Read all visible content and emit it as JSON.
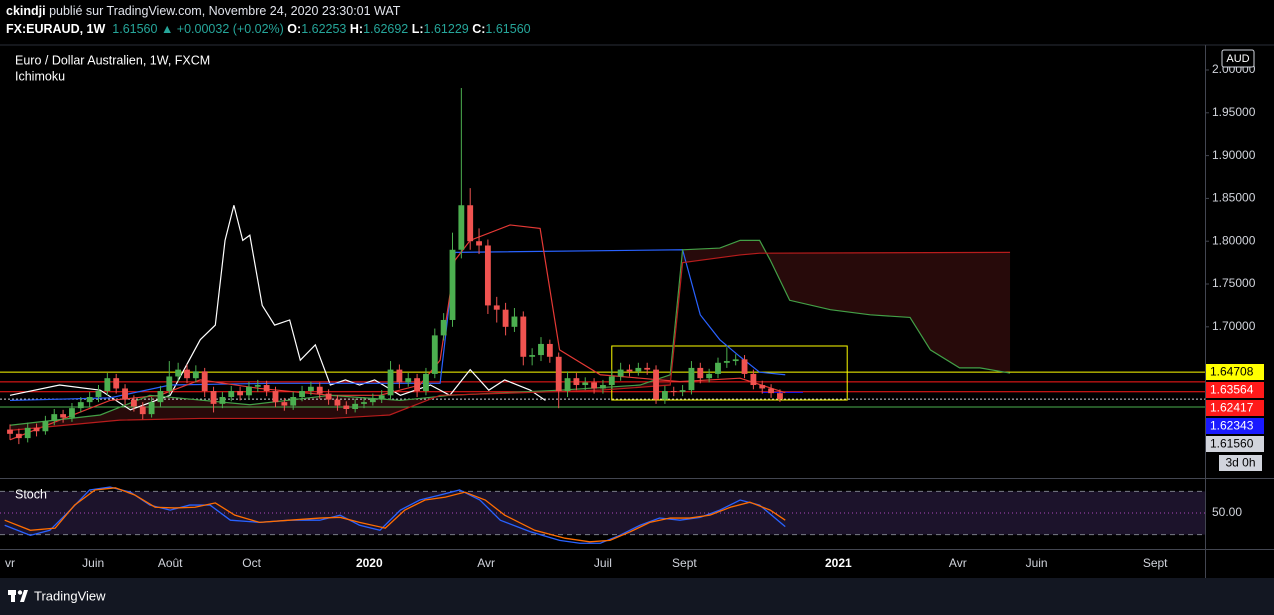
{
  "header": {
    "author": "ckindji",
    "published": "publié sur TradingView.com, Novembre 24, 2020 23:30:01 WAT",
    "symbol": "FX:EURAUD, 1W",
    "last": "1.61560",
    "change": "▲ +0.00032 (+0.02%)",
    "ohlc": [
      {
        "label": "O:",
        "value": "1.62253"
      },
      {
        "label": "H:",
        "value": "1.62692"
      },
      {
        "label": "L:",
        "value": "1.61229"
      },
      {
        "label": "C:",
        "value": "1.61560"
      }
    ]
  },
  "footer": {
    "brand": "TradingView"
  },
  "chart_data": [
    {
      "type": "candlestick",
      "title": "Euro / Dollar Australien, 1W, FXCM",
      "indicator": "Ichimoku",
      "currency": "AUD",
      "countdown": "3d 0h",
      "up_color": "#4caf50",
      "down_color": "#f05350",
      "grid": false,
      "xlim": [
        -1.13,
        135.03
      ],
      "ylim": [
        1.5234,
        2.0292
      ],
      "yticks": [
        {
          "value": 2.0,
          "label": "2.00000"
        },
        {
          "value": 1.95,
          "label": "1.95000"
        },
        {
          "value": 1.9,
          "label": "1.90000"
        },
        {
          "value": 1.85,
          "label": "1.85000"
        },
        {
          "value": 1.8,
          "label": "1.80000"
        },
        {
          "value": 1.75,
          "label": "1.75000"
        },
        {
          "value": 1.7,
          "label": "1.70000"
        }
      ],
      "candles": [
        [
          1.58,
          1.586,
          1.568,
          1.575
        ],
        [
          1.575,
          1.581,
          1.563,
          1.57
        ],
        [
          1.57,
          1.588,
          1.565,
          1.582
        ],
        [
          1.582,
          1.587,
          1.572,
          1.578
        ],
        [
          1.578,
          1.596,
          1.574,
          1.59
        ],
        [
          1.59,
          1.604,
          1.585,
          1.598
        ],
        [
          1.598,
          1.603,
          1.588,
          1.594
        ],
        [
          1.594,
          1.611,
          1.589,
          1.605
        ],
        [
          1.605,
          1.618,
          1.6,
          1.612
        ],
        [
          1.612,
          1.624,
          1.606,
          1.618
        ],
        [
          1.618,
          1.632,
          1.612,
          1.625
        ],
        [
          1.625,
          1.646,
          1.62,
          1.64
        ],
        [
          1.64,
          1.645,
          1.622,
          1.628
        ],
        [
          1.628,
          1.633,
          1.609,
          1.615
        ],
        [
          1.615,
          1.62,
          1.601,
          1.607
        ],
        [
          1.607,
          1.612,
          1.592,
          1.598
        ],
        [
          1.598,
          1.618,
          1.594,
          1.612
        ],
        [
          1.612,
          1.631,
          1.607,
          1.625
        ],
        [
          1.625,
          1.66,
          1.62,
          1.642
        ],
        [
          1.642,
          1.658,
          1.636,
          1.65
        ],
        [
          1.65,
          1.656,
          1.634,
          1.64
        ],
        [
          1.64,
          1.655,
          1.635,
          1.648
        ],
        [
          1.648,
          1.652,
          1.618,
          1.625
        ],
        [
          1.625,
          1.63,
          1.6,
          1.61
        ],
        [
          1.61,
          1.624,
          1.605,
          1.618
        ],
        [
          1.618,
          1.631,
          1.613,
          1.625
        ],
        [
          1.625,
          1.63,
          1.614,
          1.62
        ],
        [
          1.62,
          1.636,
          1.615,
          1.63
        ],
        [
          1.63,
          1.638,
          1.624,
          1.632
        ],
        [
          1.632,
          1.637,
          1.619,
          1.625
        ],
        [
          1.625,
          1.63,
          1.606,
          1.612
        ],
        [
          1.612,
          1.617,
          1.602,
          1.608
        ],
        [
          1.608,
          1.624,
          1.603,
          1.618
        ],
        [
          1.618,
          1.631,
          1.613,
          1.625
        ],
        [
          1.625,
          1.636,
          1.62,
          1.63
        ],
        [
          1.63,
          1.635,
          1.616,
          1.622
        ],
        [
          1.622,
          1.627,
          1.609,
          1.615
        ],
        [
          1.615,
          1.62,
          1.602,
          1.608
        ],
        [
          1.608,
          1.613,
          1.598,
          1.604
        ],
        [
          1.604,
          1.616,
          1.6,
          1.61
        ],
        [
          1.61,
          1.618,
          1.605,
          1.612
        ],
        [
          1.612,
          1.622,
          1.608,
          1.616
        ],
        [
          1.616,
          1.626,
          1.611,
          1.62
        ],
        [
          1.62,
          1.66,
          1.615,
          1.65
        ],
        [
          1.65,
          1.656,
          1.628,
          1.635
        ],
        [
          1.635,
          1.646,
          1.63,
          1.64
        ],
        [
          1.64,
          1.645,
          1.618,
          1.625
        ],
        [
          1.625,
          1.652,
          1.62,
          1.645
        ],
        [
          1.645,
          1.698,
          1.64,
          1.69
        ],
        [
          1.69,
          1.716,
          1.684,
          1.708
        ],
        [
          1.708,
          1.81,
          1.7,
          1.79
        ],
        [
          1.79,
          1.979,
          1.78,
          1.842
        ],
        [
          1.842,
          1.862,
          1.79,
          1.8
        ],
        [
          1.8,
          1.815,
          1.785,
          1.795
        ],
        [
          1.795,
          1.802,
          1.715,
          1.725
        ],
        [
          1.725,
          1.735,
          1.705,
          1.72
        ],
        [
          1.72,
          1.728,
          1.69,
          1.7
        ],
        [
          1.7,
          1.722,
          1.694,
          1.712
        ],
        [
          1.712,
          1.718,
          1.655,
          1.665
        ],
        [
          1.665,
          1.675,
          1.655,
          1.667
        ],
        [
          1.667,
          1.688,
          1.66,
          1.68
        ],
        [
          1.68,
          1.685,
          1.658,
          1.665
        ],
        [
          1.665,
          1.67,
          1.605,
          1.625
        ],
        [
          1.625,
          1.648,
          1.618,
          1.64
        ],
        [
          1.64,
          1.646,
          1.626,
          1.632
        ],
        [
          1.632,
          1.641,
          1.626,
          1.635
        ],
        [
          1.635,
          1.64,
          1.622,
          1.628
        ],
        [
          1.628,
          1.638,
          1.622,
          1.632
        ],
        [
          1.632,
          1.65,
          1.627,
          1.642
        ],
        [
          1.642,
          1.658,
          1.637,
          1.65
        ],
        [
          1.65,
          1.656,
          1.642,
          1.648
        ],
        [
          1.648,
          1.658,
          1.643,
          1.652
        ],
        [
          1.652,
          1.658,
          1.644,
          1.65
        ],
        [
          1.65,
          1.655,
          1.61,
          1.615
        ],
        [
          1.615,
          1.631,
          1.61,
          1.625
        ],
        [
          1.625,
          1.63,
          1.619,
          1.624
        ],
        [
          1.624,
          1.632,
          1.619,
          1.626
        ],
        [
          1.626,
          1.66,
          1.621,
          1.652
        ],
        [
          1.652,
          1.658,
          1.634,
          1.64
        ],
        [
          1.64,
          1.651,
          1.635,
          1.645
        ],
        [
          1.645,
          1.664,
          1.64,
          1.658
        ],
        [
          1.658,
          1.676,
          1.652,
          1.66
        ],
        [
          1.66,
          1.668,
          1.655,
          1.662
        ],
        [
          1.662,
          1.667,
          1.64,
          1.645
        ],
        [
          1.645,
          1.65,
          1.627,
          1.632
        ],
        [
          1.632,
          1.637,
          1.622,
          1.628
        ],
        [
          1.628,
          1.633,
          1.617,
          1.62253
        ],
        [
          1.62253,
          1.62692,
          1.61229,
          1.6156
        ]
      ],
      "lines": [
        {
          "color": "#ffffff",
          "x": [
            0,
            5.6,
            10.2,
            13.6,
            18.1,
            21.5,
            23.2,
            24.3,
            25.3,
            26.3,
            27.1,
            28.5,
            29.9,
            31.6,
            32.8,
            34.5,
            36.2,
            37.9,
            39.5,
            41.2,
            44.1,
            47.5,
            49.7,
            52.0,
            54.1,
            55.9,
            58.8,
            60.5
          ],
          "values": [
            1.62,
            1.632,
            1.626,
            1.603,
            1.62,
            1.685,
            1.702,
            1.801,
            1.842,
            1.801,
            1.807,
            1.725,
            1.702,
            1.708,
            1.661,
            1.679,
            1.632,
            1.638,
            1.632,
            1.638,
            1.62,
            1.632,
            1.62,
            1.65,
            1.626,
            1.638,
            1.626,
            1.614
          ]
        },
        {
          "color": "#2962ff",
          "x": [
            0,
            11.3,
            18.1,
            29.4,
            48.6,
            50.3,
            76.0,
            78.0,
            80.2,
            82.5,
            84.7,
            87.6
          ],
          "values": [
            1.614,
            1.617,
            1.632,
            1.634,
            1.634,
            1.787,
            1.79,
            1.714,
            1.685,
            1.665,
            1.647,
            1.644
          ]
        },
        {
          "color": "#e53935",
          "x": [
            0,
            5.6,
            11.3,
            16.9,
            21.5,
            28.2,
            36.2,
            41.8,
            46.3,
            48.6,
            50.3,
            52.0,
            56.5,
            59.9,
            62.1,
            66.7,
            71.2,
            75.7,
            82.5,
            87.6
          ],
          "values": [
            1.568,
            1.591,
            1.614,
            1.62,
            1.638,
            1.628,
            1.62,
            1.62,
            1.632,
            1.661,
            1.778,
            1.801,
            1.819,
            1.815,
            1.673,
            1.644,
            1.64,
            1.636,
            1.64,
            1.623
          ]
        },
        {
          "color": "#43a047",
          "x": [
            0,
            10.2,
            15.8,
            27.1,
            36.2,
            44.1,
            49.7,
            62.1,
            71.2,
            74.6,
            76.0,
            80.2,
            82.5,
            84.7,
            85.9,
            88.1,
            92.7,
            97.2,
            101.7,
            104.0,
            107.3,
            109.6,
            113.0
          ],
          "values": [
            1.585,
            1.597,
            1.62,
            1.609,
            1.62,
            1.614,
            1.62,
            1.626,
            1.632,
            1.644,
            1.79,
            1.792,
            1.801,
            1.801,
            1.778,
            1.731,
            1.72,
            1.714,
            1.711,
            1.673,
            1.652,
            1.652,
            1.646
          ]
        },
        {
          "color": "#b71c1c",
          "x": [
            0,
            12.4,
            21.5,
            36.2,
            42.9,
            48.6,
            66.7,
            74.6,
            76.0,
            82.5,
            84.7,
            113.0
          ],
          "values": [
            1.579,
            1.591,
            1.593,
            1.593,
            1.597,
            1.62,
            1.626,
            1.632,
            1.775,
            1.784,
            1.786,
            1.787
          ]
        }
      ],
      "cloud": {
        "lines": [
          3,
          4
        ],
        "color": "rgba(120,30,30,0.32)"
      },
      "rectangle": {
        "x": [
          68.0,
          94.6
        ],
        "y": [
          1.6145,
          1.6776
        ],
        "color": "#ffff00"
      },
      "levels": [
        {
          "value": 1.64708,
          "label": "1.64708",
          "color": "#ffff00",
          "text_color": "#000000"
        },
        {
          "value": 1.63564,
          "label": "1.63564",
          "color": "#ff1a1a",
          "text_color": "#ffffff"
        },
        {
          "value": 1.62417,
          "label": "1.62417",
          "color": "#ff1a1a",
          "text_color": "#ffffff"
        },
        {
          "value": 1.62343,
          "label": "1.62343",
          "color": "#1a1aff",
          "text_color": "#ffffff",
          "x": [
            85.0,
            89.6
          ]
        },
        {
          "value": 1.6156,
          "label": "1.61560",
          "color": "#d1d4dc",
          "text_color": "#000000",
          "dash": true
        },
        {
          "value": 1.6063,
          "color": "#4caf50"
        }
      ]
    },
    {
      "type": "line",
      "title": "Stoch",
      "xlim": [
        -1.13,
        135.03
      ],
      "xticks": [
        {
          "value": 0,
          "label": "vr"
        },
        {
          "value": 9.4,
          "label": "Juin"
        },
        {
          "value": 18.1,
          "label": "Août"
        },
        {
          "value": 27.3,
          "label": "Oct"
        },
        {
          "value": 40.6,
          "label": "2020"
        },
        {
          "value": 53.8,
          "label": "Avr"
        },
        {
          "value": 67.0,
          "label": "Juil"
        },
        {
          "value": 76.2,
          "label": "Sept"
        },
        {
          "value": 93.6,
          "label": "2021"
        },
        {
          "value": 107.1,
          "label": "Avr"
        },
        {
          "value": 116.0,
          "label": "Juin"
        },
        {
          "value": 129.4,
          "label": "Sept"
        }
      ],
      "ylim": [
        0,
        100
      ],
      "yticks": [
        {
          "value": 50,
          "label": "50.00"
        }
      ],
      "bands": [
        20,
        80
      ],
      "band_color": "rgba(126,87,194,0.22)",
      "series": [
        {
          "color": "#2962ff",
          "x": [
            -0.6,
            2.3,
            4.5,
            6.8,
            9.0,
            11.3,
            13.6,
            15.8,
            18.1,
            20.3,
            22.6,
            24.9,
            28.2,
            31.6,
            35.0,
            37.3,
            39.5,
            41.8,
            44.1,
            46.3,
            48.6,
            50.8,
            53.1,
            55.4,
            58.8,
            62.1,
            64.4,
            66.7,
            68.9,
            71.2,
            73.4,
            75.7,
            78.0,
            80.2,
            82.5,
            84.7,
            87.6
          ],
          "values": [
            33,
            19,
            26,
            54,
            82,
            86,
            79,
            61,
            54,
            61,
            61,
            40,
            37,
            40,
            40,
            47,
            33,
            26,
            54,
            68,
            75,
            82,
            68,
            40,
            24,
            12,
            8,
            8,
            19,
            33,
            43,
            40,
            44,
            54,
            68,
            61,
            31
          ]
        },
        {
          "color": "#ff6d00",
          "x": [
            -0.6,
            2.3,
            5.1,
            7.3,
            9.6,
            11.9,
            14.1,
            16.4,
            18.6,
            20.9,
            23.2,
            25.4,
            28.2,
            31.6,
            35.0,
            37.3,
            39.5,
            42.4,
            44.6,
            46.9,
            49.2,
            51.4,
            53.7,
            55.9,
            59.3,
            62.7,
            65.5,
            67.8,
            70.1,
            72.3,
            74.6,
            76.8,
            79.1,
            81.4,
            83.6,
            85.9,
            87.6
          ],
          "values": [
            40,
            26,
            29,
            61,
            82,
            85,
            75,
            58,
            57,
            58,
            64,
            47,
            37,
            40,
            43,
            44,
            37,
            29,
            54,
            68,
            72,
            79,
            68,
            47,
            26,
            15,
            10,
            12,
            24,
            37,
            43,
            43,
            47,
            58,
            65,
            54,
            40
          ]
        }
      ]
    }
  ]
}
